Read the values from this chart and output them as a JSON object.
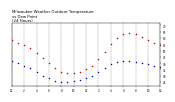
{
  "title": "Milwaukee Weather Outdoor Temperature\nvs Dew Point\n(24 Hours)",
  "title_fontsize": 2.8,
  "temp_color": "#cc0000",
  "dew_color": "#0000cc",
  "background_color": "#ffffff",
  "grid_color": "#888888",
  "ylim": [
    22,
    72
  ],
  "xlim": [
    0,
    24
  ],
  "xtick_positions": [
    0,
    2,
    4,
    6,
    8,
    10,
    12,
    14,
    16,
    18,
    20,
    22,
    24
  ],
  "xtick_labels": [
    "12",
    "2",
    "4",
    "6",
    "8",
    "10",
    "12",
    "2",
    "4",
    "6",
    "8",
    "10",
    "12"
  ],
  "ytick_positions": [
    25,
    30,
    35,
    40,
    45,
    50,
    55,
    60,
    65,
    70
  ],
  "ytick_labels": [
    "25",
    "30",
    "35",
    "40",
    "45",
    "50",
    "55",
    "60",
    "65",
    "70"
  ],
  "temp_x": [
    0,
    1,
    2,
    3,
    4,
    5,
    6,
    7,
    8,
    9,
    10,
    11,
    12,
    13,
    14,
    15,
    16,
    17,
    18,
    19,
    20,
    21,
    22,
    23,
    24
  ],
  "temp_y": [
    58,
    56,
    54,
    52,
    48,
    44,
    40,
    36,
    33,
    32,
    32,
    33,
    35,
    38,
    43,
    49,
    55,
    60,
    63,
    64,
    63,
    61,
    58,
    56,
    54
  ],
  "dew_x": [
    0,
    1,
    2,
    3,
    4,
    5,
    6,
    7,
    8,
    9,
    10,
    11,
    12,
    13,
    14,
    15,
    16,
    17,
    18,
    19,
    20,
    21,
    22,
    23,
    24
  ],
  "dew_y": [
    42,
    40,
    38,
    36,
    33,
    30,
    28,
    26,
    25,
    25,
    26,
    27,
    28,
    30,
    33,
    36,
    39,
    41,
    42,
    42,
    41,
    40,
    39,
    38,
    37
  ],
  "marker_size": 1.2
}
